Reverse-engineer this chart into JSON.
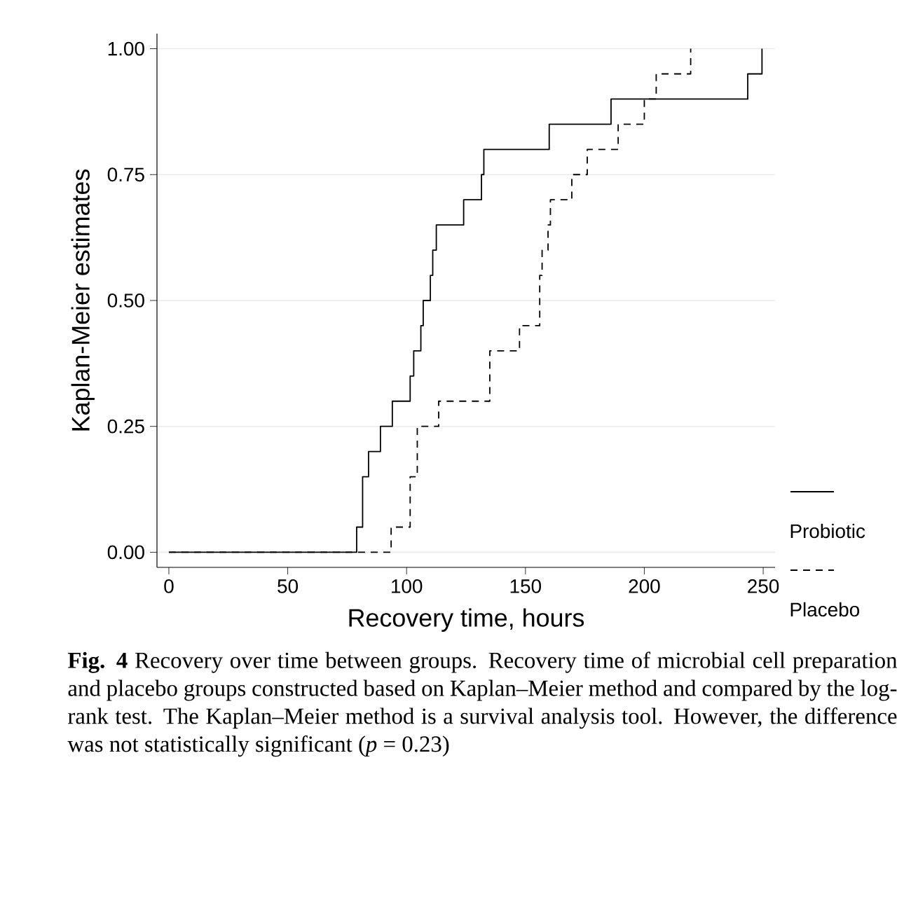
{
  "chart_data": {
    "type": "step",
    "xlabel": "Recovery time, hours",
    "ylabel": "Kaplan-Meier estimates",
    "xlim": [
      -5,
      255
    ],
    "ylim": [
      -0.03,
      1.03
    ],
    "xticks": [
      0,
      50,
      100,
      150,
      200,
      250
    ],
    "yticks": [
      {
        "value": 0,
        "label": "0.00"
      },
      {
        "value": 0.25,
        "label": "0.25"
      },
      {
        "value": 0.5,
        "label": "0.50"
      },
      {
        "value": 0.75,
        "label": "0.75"
      },
      {
        "value": 1,
        "label": "1.00"
      }
    ],
    "grid": "y",
    "legend": "right",
    "series": [
      {
        "name": "Probiotic",
        "color": "#000000",
        "line_style": "solid",
        "x": [
          0,
          79,
          81.5,
          84,
          89,
          94,
          101.5,
          103,
          106,
          107,
          110,
          111,
          112.5,
          124,
          131.5,
          132.5,
          160,
          186,
          243.5,
          249.5
        ],
        "values": [
          0,
          0.05,
          0.15,
          0.2,
          0.25,
          0.3,
          0.35,
          0.4,
          0.45,
          0.5,
          0.55,
          0.6,
          0.65,
          0.7,
          0.75,
          0.8,
          0.85,
          0.9,
          0.95,
          1.0
        ]
      },
      {
        "name": "Placebo",
        "color": "#000000",
        "line_style": "dashed",
        "x": [
          0,
          93.5,
          101.5,
          104.5,
          113.5,
          135,
          147.5,
          156,
          157,
          159.5,
          160.5,
          169.5,
          176,
          189,
          200,
          205,
          219.5
        ],
        "values": [
          0,
          0.05,
          0.15,
          0.25,
          0.3,
          0.4,
          0.45,
          0.55,
          0.6,
          0.65,
          0.7,
          0.75,
          0.8,
          0.85,
          0.9,
          0.95,
          1.0
        ]
      }
    ],
    "annotations": [
      "**Fig. 4** Recovery over time between groups. Recovery time of microbial cell preparation and placebo groups constructed based on Kaplan–Meier method and compared by the log-rank test. The Kaplan–Meier method is a survival analysis tool. However, the difference was not statistically significant (*p* = 0.23)"
    ]
  }
}
